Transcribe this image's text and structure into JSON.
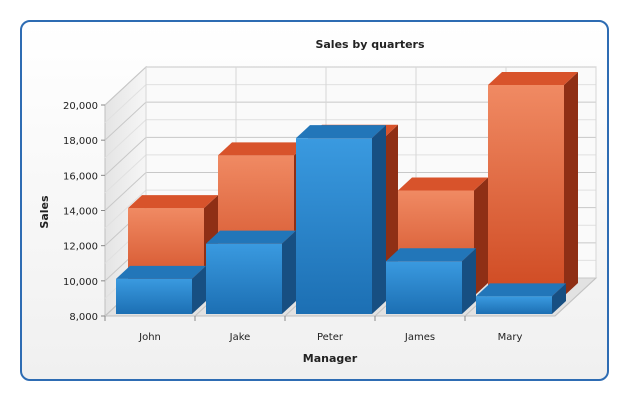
{
  "colors": {
    "frame": "#2e6cb3",
    "floor": "#d3d3d3",
    "grid": "#d0d0d0",
    "series_orange": "#e8603a",
    "series_blue": "#2a84c8"
  },
  "chart_data": {
    "type": "bar",
    "title": "Sales by quarters",
    "xlabel": "Manager",
    "ylabel": "Sales",
    "categories": [
      "John",
      "Jake",
      "Peter",
      "James",
      "Mary"
    ],
    "series": [
      {
        "values": [
          13000,
          16000,
          17000,
          14000,
          20000
        ]
      },
      {
        "values": [
          10000,
          12000,
          18000,
          11000,
          9000
        ]
      }
    ],
    "ylim": [
      8000,
      20000
    ],
    "yticks": [
      "8,000",
      "10,000",
      "12,000",
      "14,000",
      "16,000",
      "18,000",
      "20,000"
    ],
    "grid": true,
    "legend": "none",
    "style": "3d-clustered"
  }
}
